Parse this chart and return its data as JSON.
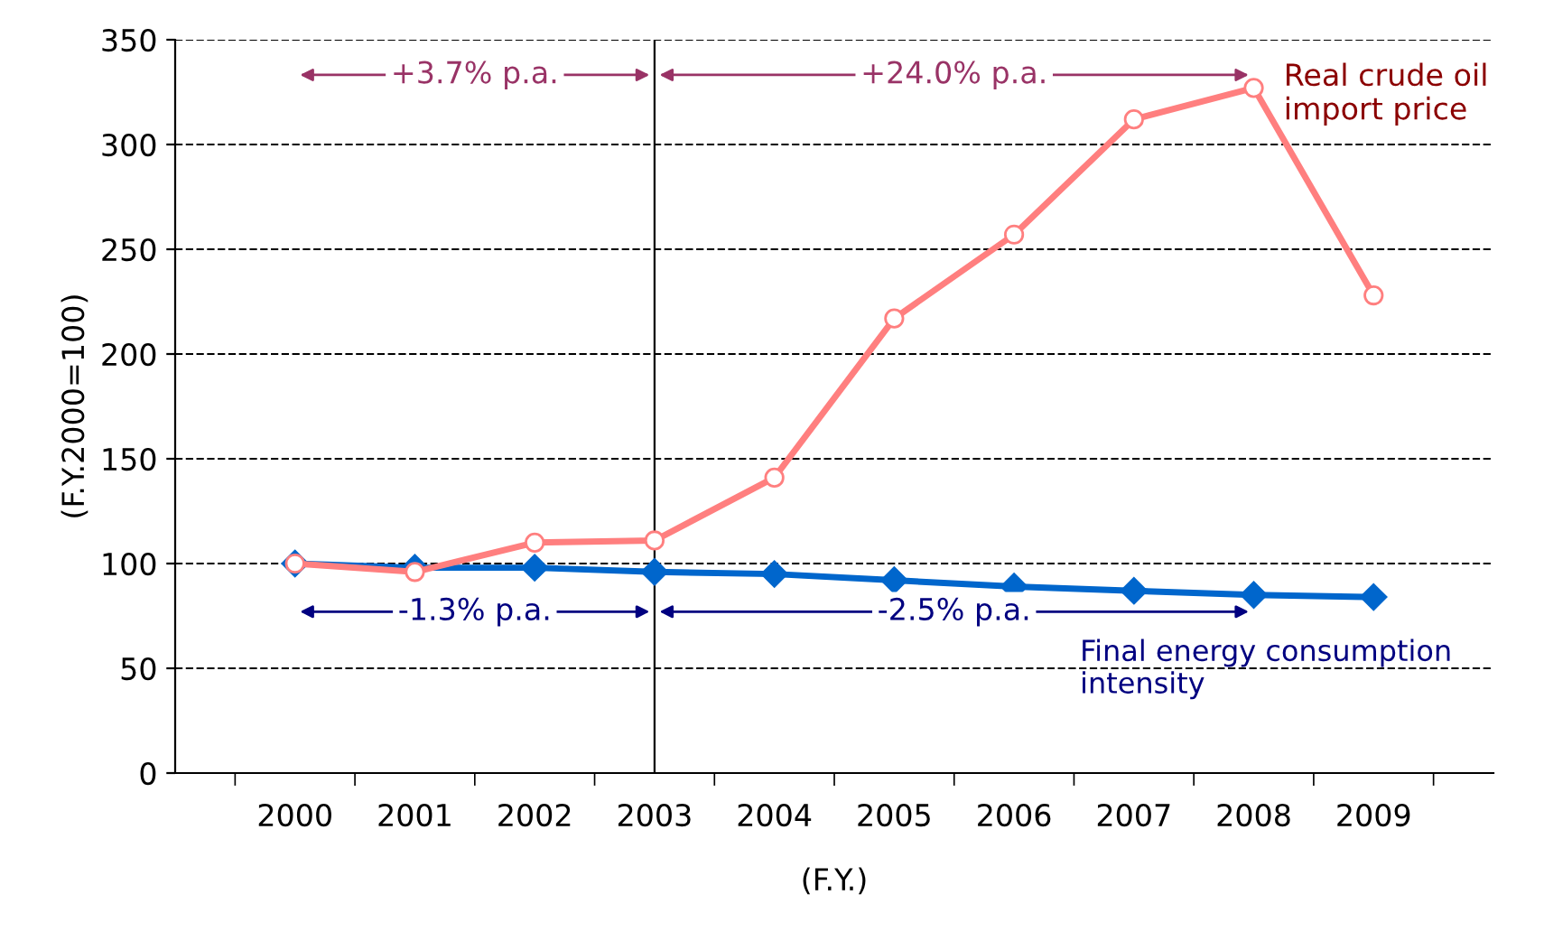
{
  "chart_data": {
    "type": "line",
    "ylabel": "(F.Y.2000=100)",
    "xlabel": "(F.Y.)",
    "categories": [
      "2000",
      "2001",
      "2002",
      "2003",
      "2004",
      "2005",
      "2006",
      "2007",
      "2008",
      "2009"
    ],
    "series": [
      {
        "name": "Real crude oil import price",
        "color": "#ff7f7f",
        "marker": "circle",
        "values": [
          100,
          96,
          110,
          111,
          141,
          217,
          257,
          312,
          327,
          228
        ]
      },
      {
        "name": "Final energy consumption intensity",
        "color": "#0066cc",
        "marker": "diamond",
        "values": [
          100,
          98,
          98,
          96,
          95,
          92,
          89,
          87,
          85,
          84
        ]
      }
    ],
    "annotations": [
      "+3.7% p.a.",
      "+24.0% p.a.",
      "-1.3% p.a.",
      "-2.5% p.a."
    ],
    "ref_lines": [
      {
        "axis": "x",
        "value": "2003",
        "color": "#000000"
      }
    ],
    "ylim": [
      0,
      350
    ],
    "yticks": [
      0,
      50,
      100,
      150,
      200,
      250,
      300,
      350
    ],
    "grid": "y",
    "line_style": "solid",
    "legend": false
  }
}
